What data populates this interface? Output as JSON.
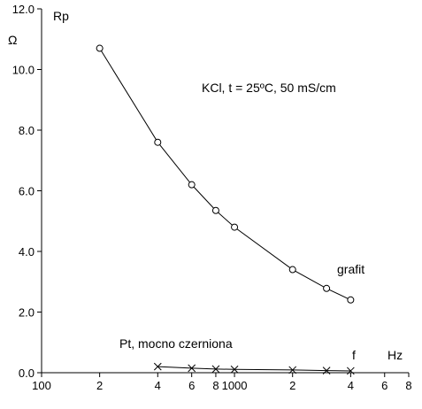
{
  "chart_data": {
    "type": "line",
    "x_scale": "log",
    "xlim": [
      100,
      8000
    ],
    "ylim": [
      0,
      12
    ],
    "grid": false,
    "y_label": "Rp",
    "y_unit": "Ω",
    "x_label": "f",
    "x_unit": "Hz",
    "y_ticks": [
      "0.0",
      "2.0",
      "4.0",
      "6.0",
      "8.0",
      "10.0",
      "12.0"
    ],
    "y_tick_values": [
      0,
      2,
      4,
      6,
      8,
      10,
      12
    ],
    "x_ticks": [
      {
        "value": 100,
        "label": "100"
      },
      {
        "value": 200,
        "label": "2"
      },
      {
        "value": 400,
        "label": "4"
      },
      {
        "value": 600,
        "label": "6"
      },
      {
        "value": 800,
        "label": "8"
      },
      {
        "value": 1000,
        "label": "1000"
      },
      {
        "value": 2000,
        "label": "2"
      },
      {
        "value": 4000,
        "label": "4"
      },
      {
        "value": 6000,
        "label": "6"
      },
      {
        "value": 8000,
        "label": "8"
      }
    ],
    "annotation": "KCl, t = 25ºC,  50 mS/cm",
    "series": [
      {
        "name": "grafit",
        "marker": "circle",
        "x": [
          200,
          400,
          600,
          800,
          1000,
          2000,
          3000,
          4000
        ],
        "y": [
          10.7,
          7.6,
          6.2,
          5.35,
          4.8,
          3.4,
          2.78,
          2.4
        ]
      },
      {
        "name": "Pt, mocno czerniona",
        "marker": "x",
        "x": [
          400,
          600,
          800,
          1000,
          2000,
          3000,
          4000
        ],
        "y": [
          0.2,
          0.15,
          0.12,
          0.11,
          0.09,
          0.07,
          0.06
        ]
      }
    ]
  }
}
